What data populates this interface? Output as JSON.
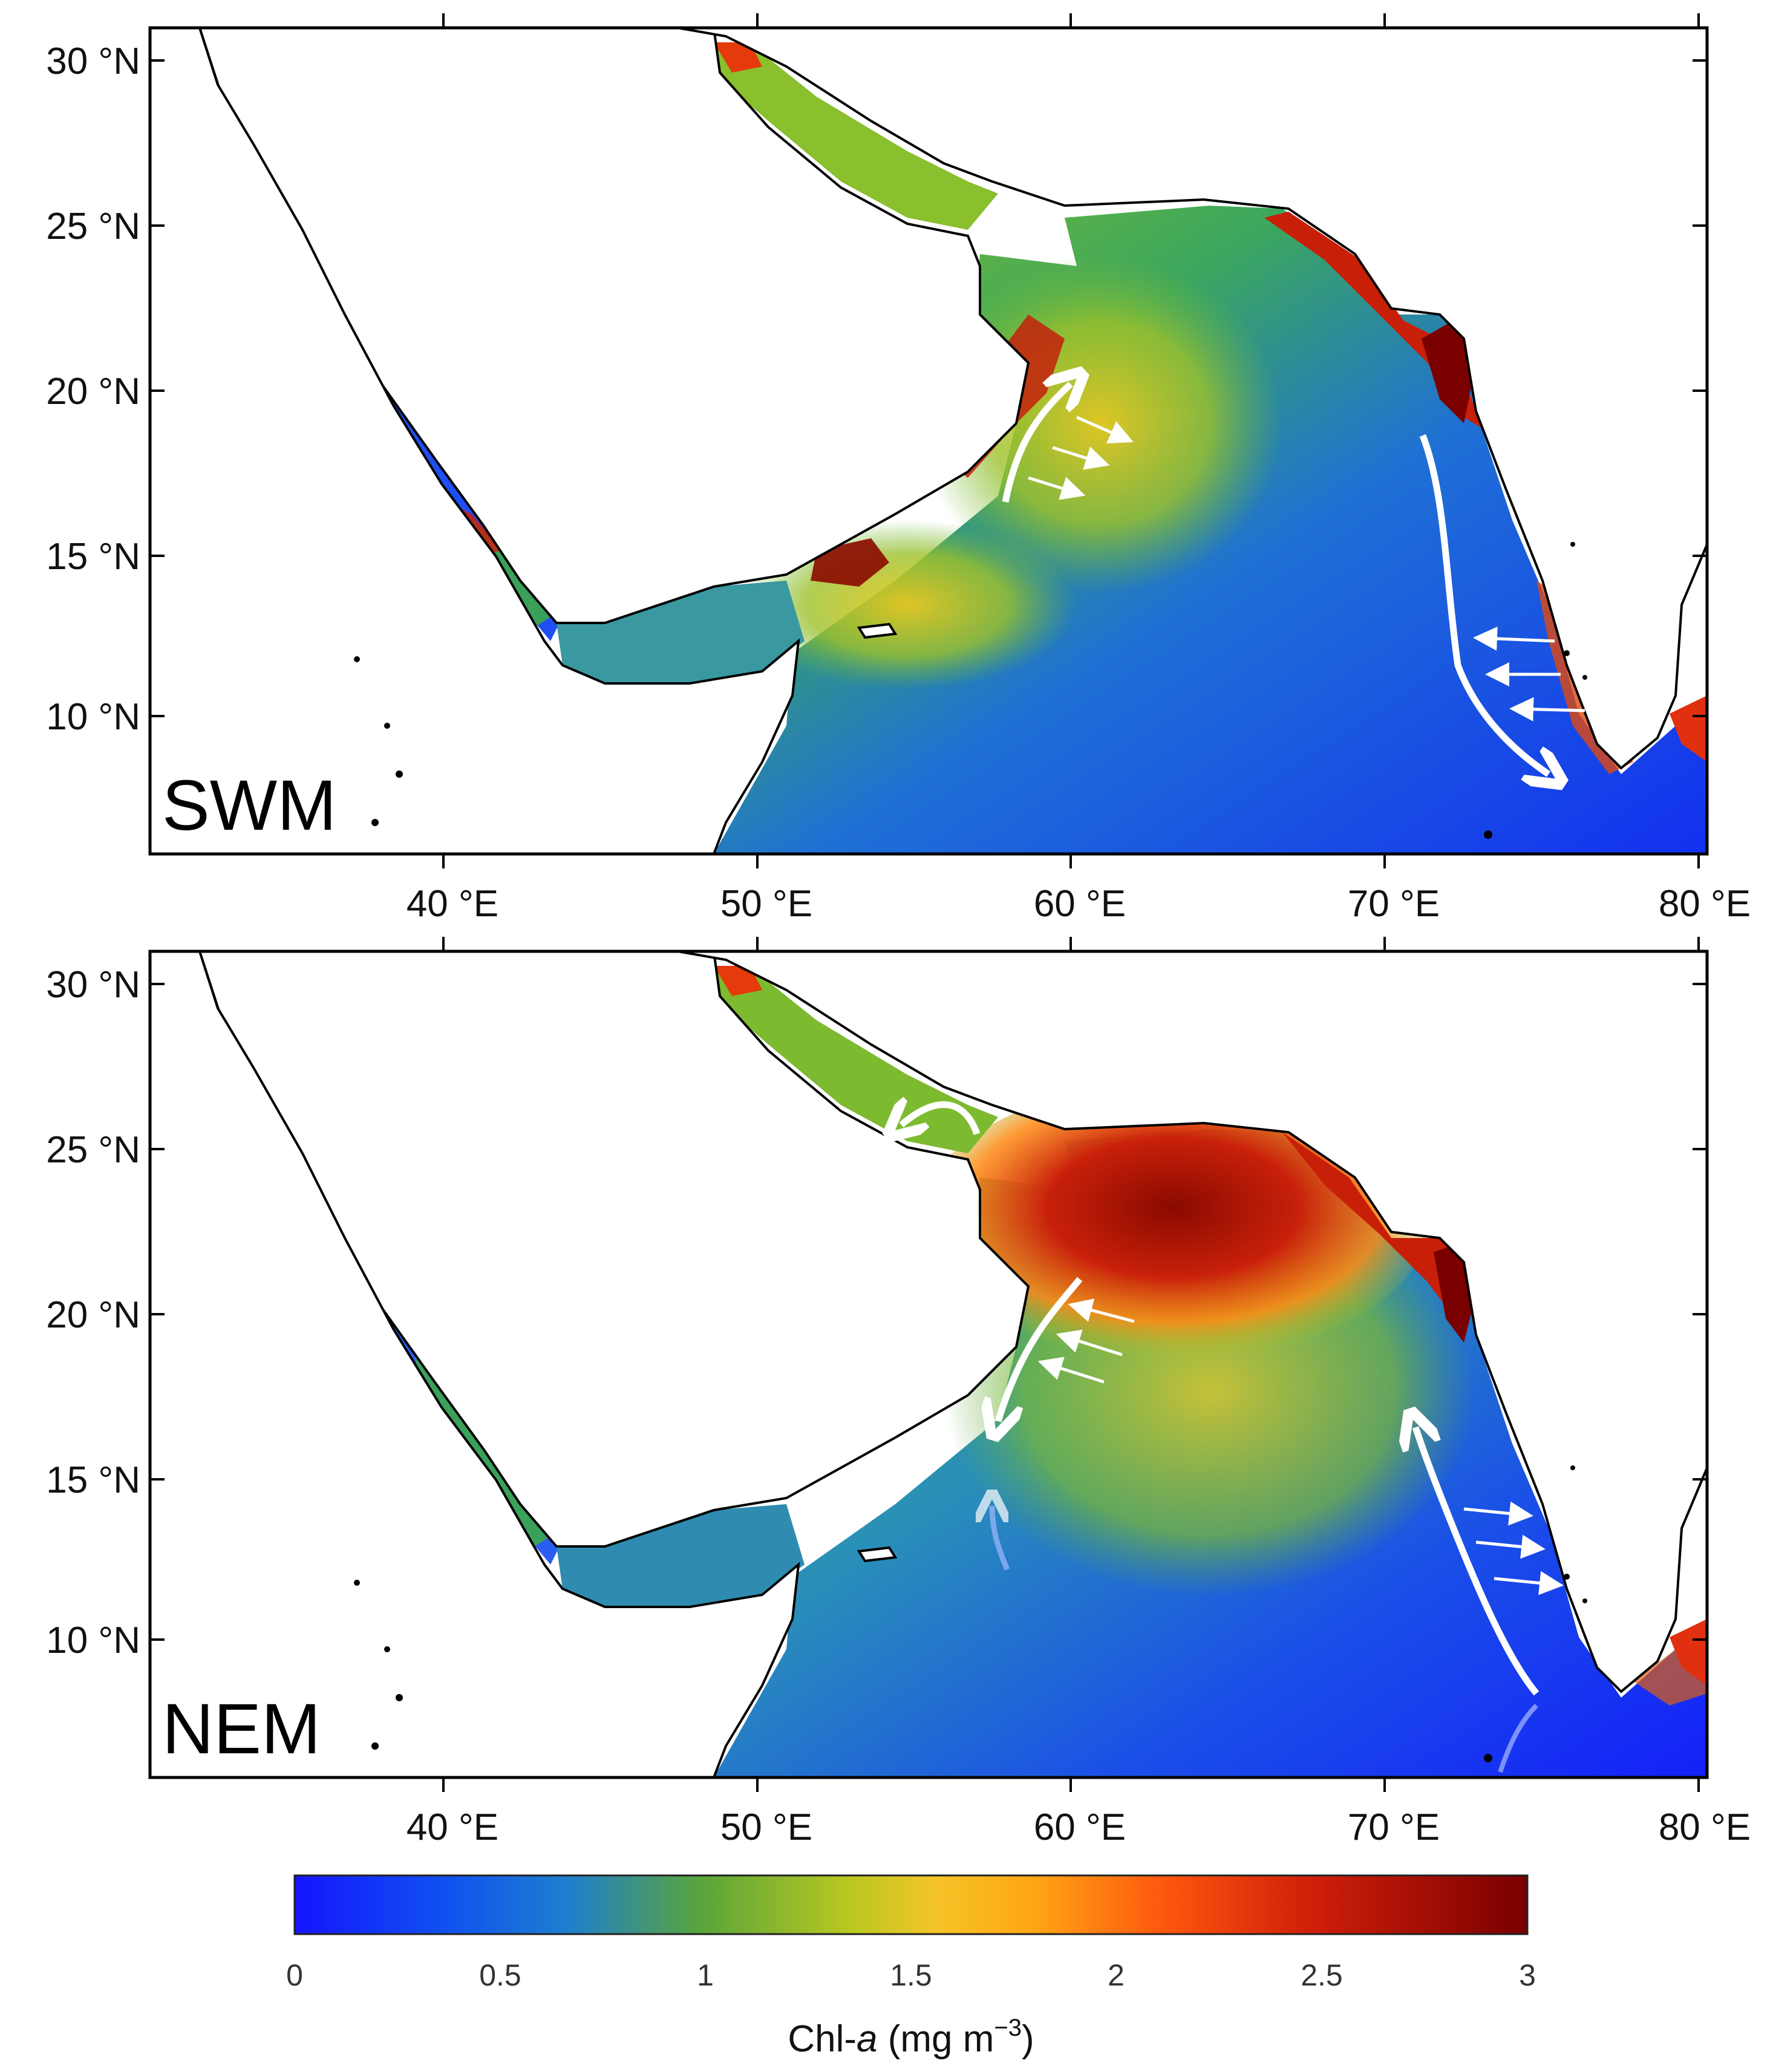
{
  "panels": [
    {
      "label": "SWM"
    },
    {
      "label": "NEM"
    }
  ],
  "axes": {
    "lat_ticks": [
      "30 °N",
      "25 °N",
      "20 °N",
      "15 °N",
      "10 °N"
    ],
    "lon_ticks": [
      "40 °E",
      "50 °E",
      "60 °E",
      "70 °E",
      "80 °E"
    ]
  },
  "colorbar": {
    "ticks": [
      "0",
      "0.5",
      "1",
      "1.5",
      "2",
      "2.5",
      "3"
    ],
    "title_prefix": "Chl-",
    "title_var": "a",
    "title_units": " (mg m",
    "title_exp": "−3",
    "title_close": ")",
    "colormap": [
      "#1a1aff",
      "#1e78d8",
      "#3ea35a",
      "#7fbf25",
      "#ffd12a",
      "#ff7a10",
      "#e0200a",
      "#7a0000"
    ],
    "range": [
      0,
      3
    ]
  },
  "colors": {
    "land": "#ffffff",
    "coastline": "#000000",
    "arrow": "#ffffff",
    "red_sea": "#2a5cf0",
    "high_chl": "#8b0a00"
  }
}
